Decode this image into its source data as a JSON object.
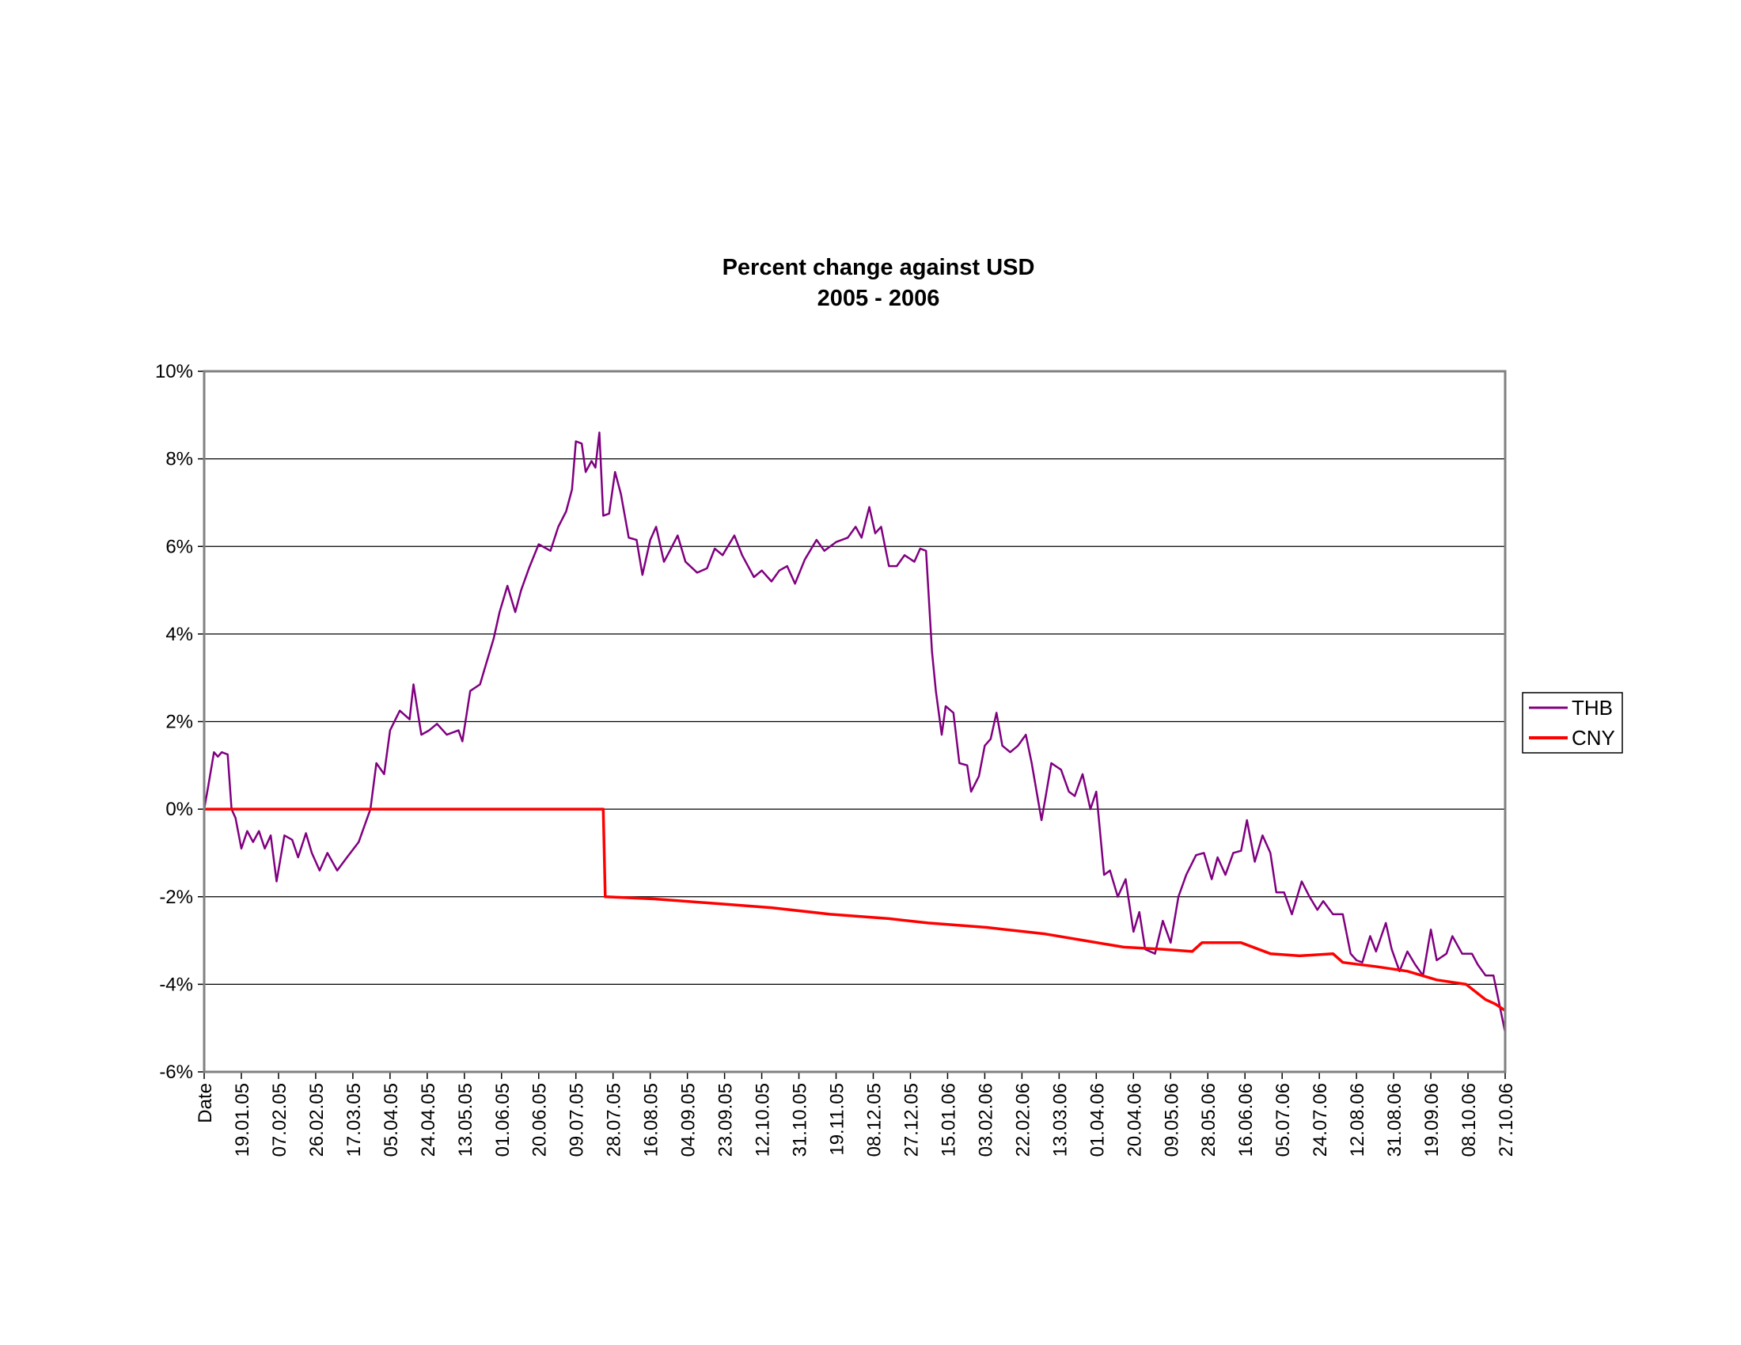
{
  "chart_data": {
    "type": "line",
    "title": "Percent change against USD",
    "subtitle": "2005 - 2006",
    "xlabel": "",
    "ylabel": "",
    "ylim": [
      -6,
      10
    ],
    "yticks": [
      -6,
      -4,
      -2,
      0,
      2,
      4,
      6,
      8,
      10
    ],
    "ytick_labels": [
      "-6%",
      "-4%",
      "-2%",
      "0%",
      "2%",
      "4%",
      "6%",
      "8%",
      "10%"
    ],
    "x_unit": "days since start",
    "xlim": [
      0,
      665
    ],
    "xtick_step_days": 19,
    "xtick_labels": [
      "Date",
      "19.01.05",
      "07.02.05",
      "26.02.05",
      "17.03.05",
      "05.04.05",
      "24.04.05",
      "13.05.05",
      "01.06.05",
      "20.06.05",
      "09.07.05",
      "28.07.05",
      "16.08.05",
      "04.09.05",
      "23.09.05",
      "12.10.05",
      "31.10.05",
      "19.11.05",
      "08.12.05",
      "27.12.05",
      "15.01.06",
      "03.02.06",
      "22.02.06",
      "13.03.06",
      "01.04.06",
      "20.04.06",
      "09.05.06",
      "28.05.06",
      "16.06.06",
      "05.07.06",
      "24.07.06",
      "12.08.06",
      "31.08.06",
      "19.09.06",
      "08.10.06",
      "27.10.06"
    ],
    "grid": true,
    "legend_position": "right",
    "series": [
      {
        "name": "THB",
        "color": "#800080",
        "x": [
          0,
          2,
          5,
          7,
          9,
          12,
          14,
          16,
          19,
          22,
          25,
          28,
          31,
          34,
          37,
          41,
          45,
          48,
          52,
          55,
          59,
          63,
          68,
          73,
          79,
          85,
          88,
          92,
          95,
          100,
          105,
          107,
          111,
          115,
          119,
          124,
          130,
          132,
          136,
          141,
          143,
          148,
          151,
          155,
          159,
          162,
          166,
          171,
          177,
          181,
          185,
          188,
          190,
          193,
          195,
          198,
          200,
          202,
          204,
          207,
          210,
          213,
          217,
          221,
          224,
          228,
          231,
          235,
          238,
          242,
          246,
          252,
          257,
          261,
          265,
          271,
          275,
          281,
          285,
          290,
          294,
          298,
          302,
          307,
          313,
          317,
          323,
          329,
          333,
          336,
          340,
          343,
          346,
          350,
          354,
          358,
          363,
          366,
          369,
          372,
          374,
          377,
          379,
          383,
          386,
          390,
          392,
          396,
          399,
          402,
          405,
          408,
          412,
          416,
          420,
          423,
          428,
          430,
          433,
          438,
          442,
          445,
          449,
          453,
          456,
          460,
          463,
          467,
          471,
          475,
          478,
          481,
          486,
          490,
          494,
          498,
          502,
          507,
          511,
          515,
          518,
          522,
          526,
          530,
          533,
          537,
          541,
          545,
          548,
          552,
          556,
          561,
          565,
          569,
          572,
          577,
          582,
          586,
          589,
          592,
          596,
          599,
          604,
          607,
          611,
          615,
          619,
          623,
          627,
          630,
          635,
          638,
          643,
          648,
          651,
          655,
          659,
          662,
          665
        ],
        "y": [
          0,
          0.5,
          1.3,
          1.2,
          1.3,
          1.25,
          0,
          -0.2,
          -0.9,
          -0.5,
          -0.75,
          -0.5,
          -0.9,
          -0.6,
          -1.65,
          -0.6,
          -0.7,
          -1.1,
          -0.55,
          -1.0,
          -1.4,
          -1.0,
          -1.4,
          -1.1,
          -0.75,
          0.0,
          1.05,
          0.8,
          1.8,
          2.25,
          2.05,
          2.85,
          1.7,
          1.8,
          1.95,
          1.7,
          1.8,
          1.55,
          2.7,
          2.85,
          3.15,
          3.9,
          4.5,
          5.1,
          4.5,
          5.0,
          5.5,
          6.05,
          5.9,
          6.45,
          6.8,
          7.3,
          8.4,
          8.35,
          7.7,
          7.95,
          7.8,
          8.6,
          6.7,
          6.75,
          7.7,
          7.2,
          6.2,
          6.15,
          5.35,
          6.15,
          6.45,
          5.65,
          5.9,
          6.25,
          5.65,
          5.4,
          5.5,
          5.95,
          5.8,
          6.25,
          5.8,
          5.3,
          5.45,
          5.2,
          5.45,
          5.55,
          5.15,
          5.7,
          6.15,
          5.9,
          6.1,
          6.2,
          6.45,
          6.2,
          6.9,
          6.3,
          6.45,
          5.55,
          5.55,
          5.8,
          5.65,
          5.95,
          5.9,
          3.6,
          2.7,
          1.7,
          2.35,
          2.2,
          1.05,
          1.0,
          0.4,
          0.75,
          1.45,
          1.6,
          2.2,
          1.45,
          1.3,
          1.45,
          1.7,
          1.05,
          -0.25,
          0.25,
          1.05,
          0.9,
          0.4,
          0.3,
          0.8,
          0.0,
          0.4,
          -1.5,
          -1.4,
          -2.0,
          -1.6,
          -2.8,
          -2.35,
          -3.2,
          -3.3,
          -2.55,
          -3.05,
          -2.0,
          -1.5,
          -1.05,
          -1.0,
          -1.6,
          -1.1,
          -1.5,
          -1.0,
          -0.95,
          -0.25,
          -1.2,
          -0.6,
          -1.0,
          -1.9,
          -1.9,
          -2.4,
          -1.65,
          -2.0,
          -2.3,
          -2.1,
          -2.4,
          -2.4,
          -3.3,
          -3.45,
          -3.5,
          -2.9,
          -3.25,
          -2.6,
          -3.2,
          -3.7,
          -3.25,
          -3.55,
          -3.8,
          -2.75,
          -3.45,
          -3.3,
          -2.9,
          -3.3,
          -3.3,
          -3.55,
          -3.8,
          -3.8,
          -4.45,
          -5.1
        ]
      },
      {
        "name": "CNY",
        "color": "#ff0000",
        "x": [
          0,
          204,
          205,
          230,
          260,
          290,
          320,
          350,
          370,
          400,
          430,
          450,
          470,
          490,
          505,
          510,
          530,
          545,
          560,
          577,
          582,
          600,
          615,
          630,
          645,
          655,
          660,
          665
        ],
        "y": [
          0,
          0,
          -2.0,
          -2.05,
          -2.15,
          -2.25,
          -2.4,
          -2.5,
          -2.6,
          -2.7,
          -2.85,
          -3.0,
          -3.15,
          -3.2,
          -3.25,
          -3.05,
          -3.05,
          -3.3,
          -3.35,
          -3.3,
          -3.5,
          -3.6,
          -3.7,
          -3.9,
          -4.0,
          -4.35,
          -4.45,
          -4.6
        ]
      }
    ]
  }
}
